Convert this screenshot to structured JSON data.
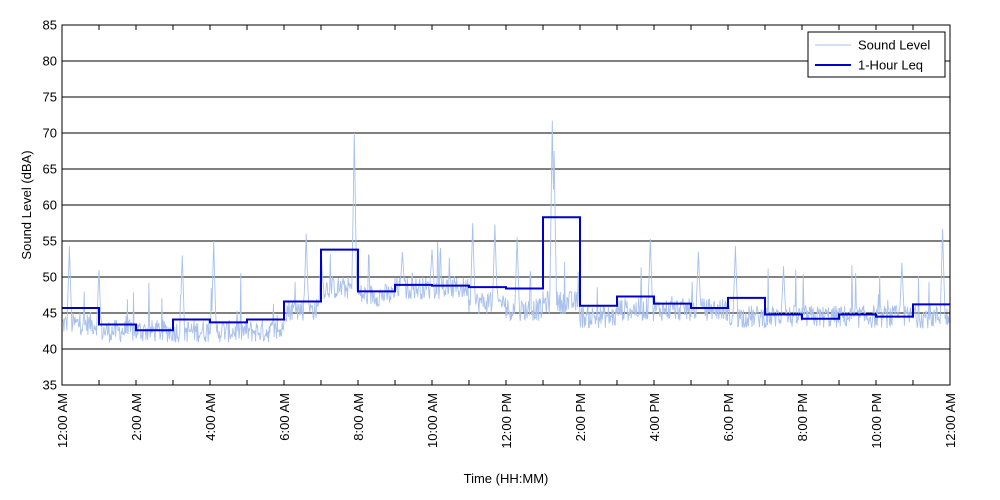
{
  "chart_data": {
    "type": "line",
    "title": "",
    "xlabel": "Time (HH:MM)",
    "ylabel": "Sound Level (dBA)",
    "ylim": [
      35,
      85
    ],
    "yticks": [
      35,
      40,
      45,
      50,
      55,
      60,
      65,
      70,
      75,
      80,
      85
    ],
    "xlim_hours": [
      0,
      24
    ],
    "xticks": [
      {
        "hour": 0,
        "label": "12:00 AM"
      },
      {
        "hour": 2,
        "label": "2:00 AM"
      },
      {
        "hour": 4,
        "label": "4:00 AM"
      },
      {
        "hour": 6,
        "label": "6:00 AM"
      },
      {
        "hour": 8,
        "label": "8:00 AM"
      },
      {
        "hour": 10,
        "label": "10:00 AM"
      },
      {
        "hour": 12,
        "label": "12:00 PM"
      },
      {
        "hour": 14,
        "label": "2:00 PM"
      },
      {
        "hour": 16,
        "label": "4:00 PM"
      },
      {
        "hour": 18,
        "label": "6:00 PM"
      },
      {
        "hour": 20,
        "label": "8:00 PM"
      },
      {
        "hour": 22,
        "label": "10:00 PM"
      },
      {
        "hour": 24,
        "label": "12:00 AM"
      }
    ],
    "grid": "horizontal",
    "legend_position": "top-right",
    "colors": {
      "sound_level": "#a9c1ec",
      "leq": "#0000cc"
    },
    "series": [
      {
        "name": "Sound Level",
        "style": "thin-light-blue",
        "hourly_base": [
          43,
          42,
          42,
          42,
          42,
          42,
          45,
          48,
          47,
          48,
          48,
          46,
          45,
          46,
          44,
          45,
          45,
          45,
          44,
          44,
          44,
          44,
          44,
          44
        ],
        "peaks": [
          {
            "hour": 7.9,
            "value": 70.0
          },
          {
            "hour": 13.25,
            "value": 71.7
          },
          {
            "hour": 13.3,
            "value": 67.5
          },
          {
            "hour": 7.0,
            "value": 53.5
          },
          {
            "hour": 6.6,
            "value": 56.0
          },
          {
            "hour": 3.25,
            "value": 53.0
          },
          {
            "hour": 4.1,
            "value": 55.0
          },
          {
            "hour": 11.1,
            "value": 57.5
          },
          {
            "hour": 11.7,
            "value": 57.3
          },
          {
            "hour": 15.9,
            "value": 55.3
          },
          {
            "hour": 18.2,
            "value": 54.3
          },
          {
            "hour": 23.8,
            "value": 56.7
          },
          {
            "hour": 0.2,
            "value": 54.3
          },
          {
            "hour": 1.0,
            "value": 51.0
          },
          {
            "hour": 9.2,
            "value": 53.5
          },
          {
            "hour": 10.0,
            "value": 53.8
          },
          {
            "hour": 12.3,
            "value": 55.5
          },
          {
            "hour": 17.2,
            "value": 53.5
          },
          {
            "hour": 19.5,
            "value": 51.5
          },
          {
            "hour": 22.7,
            "value": 52.0
          }
        ]
      },
      {
        "name": "1-Hour Leq",
        "style": "thick-blue-step",
        "hourly_values": [
          45.7,
          43.4,
          42.6,
          44.1,
          43.7,
          44.1,
          46.6,
          53.8,
          48.0,
          48.9,
          48.8,
          48.6,
          48.4,
          58.3,
          46.0,
          47.3,
          46.3,
          45.7,
          47.1,
          44.8,
          44.2,
          44.8,
          44.5,
          46.2
        ]
      }
    ]
  }
}
